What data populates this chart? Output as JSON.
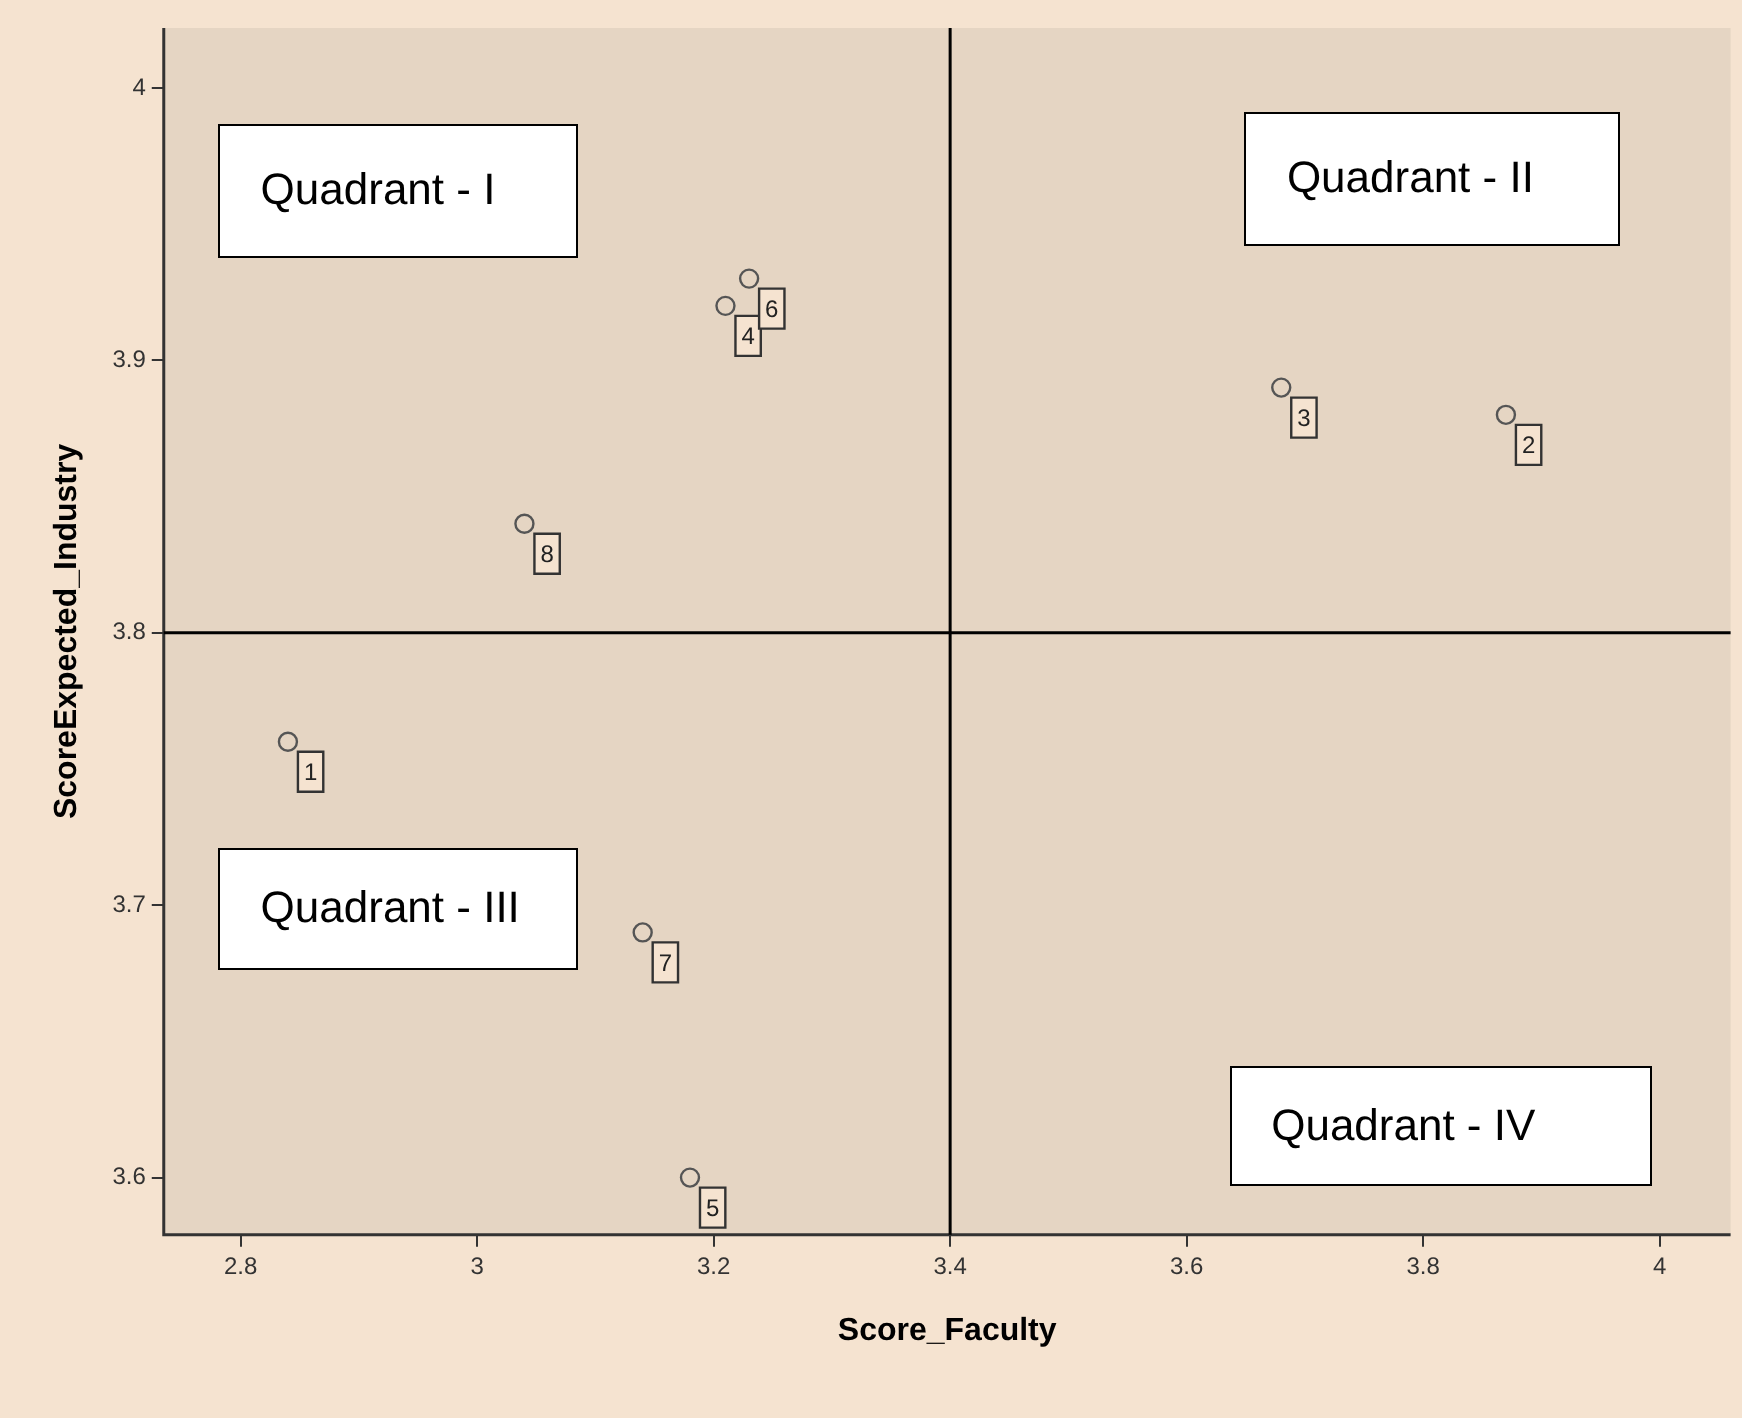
{
  "chart_data": {
    "type": "scatter",
    "xlabel": "Score_Faculty",
    "ylabel": "ScoreExpected_Industry",
    "x": [
      2.84,
      3.87,
      3.68,
      3.21,
      3.18,
      3.23,
      3.14,
      3.04
    ],
    "series": [
      {
        "color": "#555555",
        "values": [
          3.76,
          3.88,
          3.89,
          3.92,
          3.6,
          3.93,
          3.69,
          3.84
        ]
      }
    ],
    "marker": "circle",
    "grid": false,
    "legend": false,
    "xlim": [
      2.735,
      4.06
    ],
    "xticks": [
      2.8,
      3,
      3.2,
      3.4,
      3.6,
      3.8,
      4
    ],
    "ylim": [
      3.579,
      4.022
    ],
    "yticks": [
      3.6,
      3.7,
      3.8,
      3.9,
      4
    ],
    "ref_lines": [
      {
        "axis": "x",
        "value": 3.4,
        "color": "#000000"
      },
      {
        "axis": "y",
        "value": 3.8,
        "color": "#000000"
      }
    ],
    "annotations": [
      "Quadrant - I",
      "Quadrant - II",
      "Quadrant - III",
      "Quadrant - IV",
      {
        "text": "1",
        "x": 2.84,
        "y": 3.76
      },
      {
        "text": "2",
        "x": 3.87,
        "y": 3.88
      },
      {
        "text": "3",
        "x": 3.68,
        "y": 3.89
      },
      {
        "text": "4",
        "x": 3.21,
        "y": 3.92
      },
      {
        "text": "5",
        "x": 3.18,
        "y": 3.6
      },
      {
        "text": "6",
        "x": 3.23,
        "y": 3.93
      },
      {
        "text": "7",
        "x": 3.14,
        "y": 3.69
      },
      {
        "text": "8",
        "x": 3.04,
        "y": 3.84
      }
    ]
  }
}
